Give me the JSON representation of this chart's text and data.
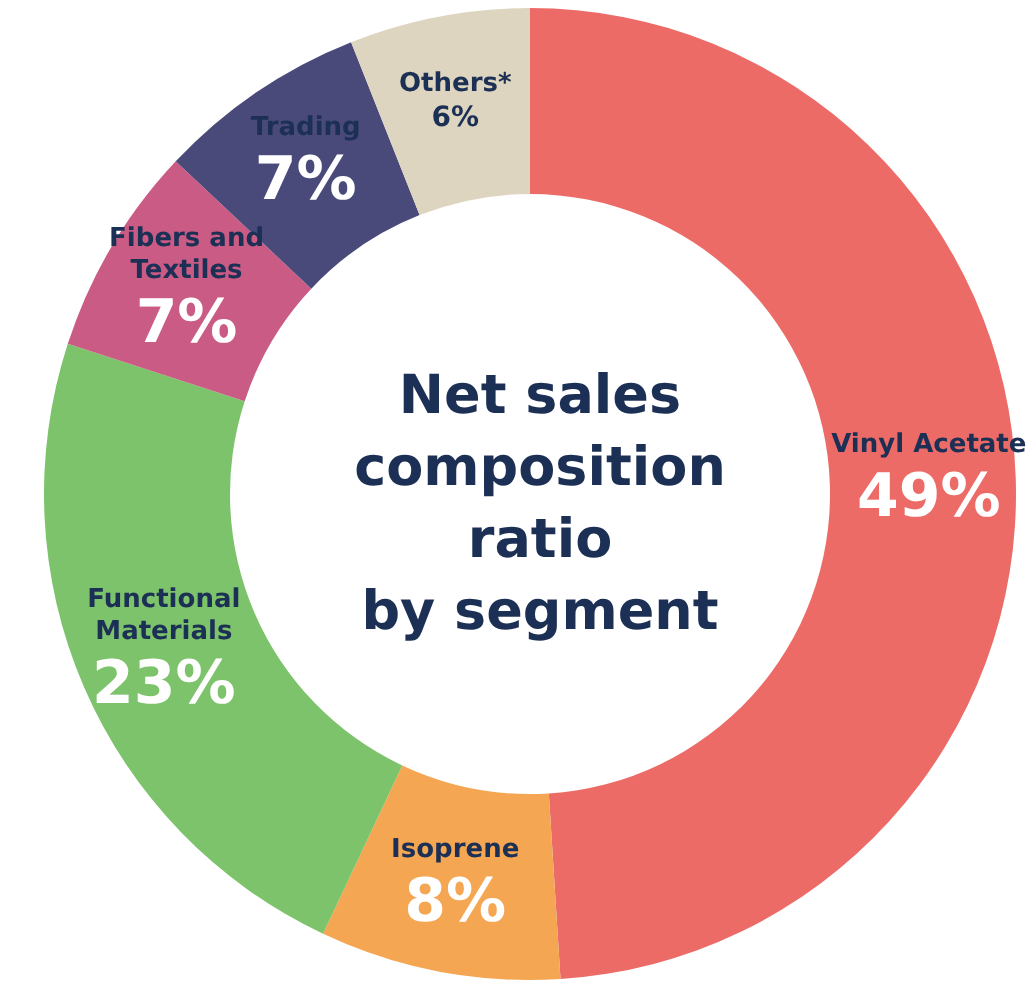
{
  "chart_data": {
    "type": "donut",
    "title": "Net sales\ncomposition\nratio\nby segment",
    "categories": [
      "Vinyl Acetate",
      "Isoprene",
      "Functional\nMaterials",
      "Fibers and\nTextiles",
      "Trading",
      "Others*"
    ],
    "values": [
      49,
      8,
      23,
      7,
      7,
      6
    ],
    "value_labels": [
      "49%",
      "8%",
      "23%",
      "7%",
      "7%",
      "6%"
    ],
    "colors": [
      "#ec6b67",
      "#f4a653",
      "#7dc36b",
      "#c95b84",
      "#4a4a7a",
      "#ddd5bf"
    ],
    "legend": false
  }
}
